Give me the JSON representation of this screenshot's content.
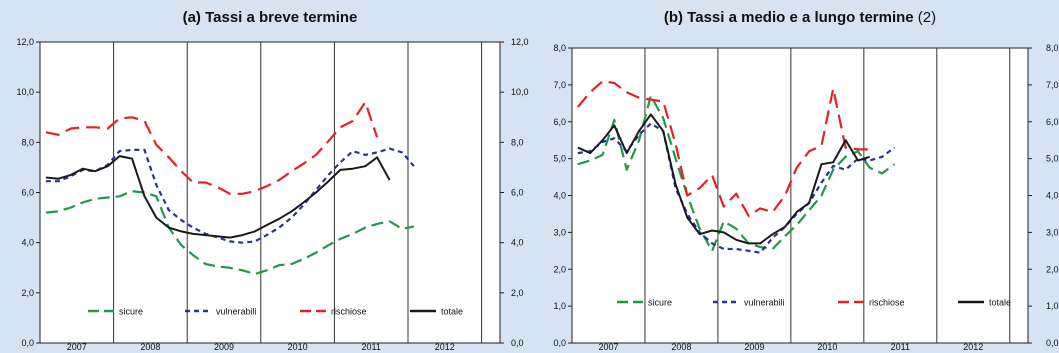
{
  "chart_data": [
    {
      "type": "line",
      "title": "(a) Tassi a breve termine",
      "title_suffix": "",
      "xlabel": "",
      "ylabel": "",
      "x_tick_labels": [
        "2007",
        "2008",
        "2009",
        "2010",
        "2011",
        "2012"
      ],
      "x_range": [
        2006.5,
        2012.75
      ],
      "ylim": [
        0,
        12
      ],
      "y_ticks": [
        0,
        2,
        4,
        6,
        8,
        10,
        12
      ],
      "y_tick_labels": [
        "0,0",
        "2,0",
        "4,0",
        "6,0",
        "8,0",
        "10,0",
        "12,0"
      ],
      "grid": "vertical",
      "legend_position": "bottom",
      "series": [
        {
          "name": "sicure",
          "color": "#1f9a4a",
          "dash": "12,6",
          "points": [
            [
              2006.58,
              5.2
            ],
            [
              2006.75,
              5.25
            ],
            [
              2006.92,
              5.4
            ],
            [
              2007.08,
              5.6
            ],
            [
              2007.25,
              5.75
            ],
            [
              2007.42,
              5.8
            ],
            [
              2007.58,
              5.85
            ],
            [
              2007.75,
              6.05
            ],
            [
              2007.92,
              6.0
            ],
            [
              2008.08,
              5.85
            ],
            [
              2008.25,
              4.6
            ],
            [
              2008.42,
              3.9
            ],
            [
              2008.58,
              3.5
            ],
            [
              2008.75,
              3.15
            ],
            [
              2008.92,
              3.05
            ],
            [
              2009.08,
              3.0
            ],
            [
              2009.25,
              2.9
            ],
            [
              2009.42,
              2.75
            ],
            [
              2009.58,
              2.9
            ],
            [
              2009.75,
              3.1
            ],
            [
              2009.92,
              3.15
            ],
            [
              2010.08,
              3.35
            ],
            [
              2010.25,
              3.6
            ],
            [
              2010.42,
              3.9
            ],
            [
              2010.58,
              4.15
            ],
            [
              2010.75,
              4.35
            ],
            [
              2010.92,
              4.6
            ],
            [
              2011.08,
              4.75
            ],
            [
              2011.25,
              4.85
            ],
            [
              2011.42,
              4.55
            ],
            [
              2011.58,
              4.65
            ]
          ]
        },
        {
          "name": "vulnerabili",
          "color": "#2a3590",
          "dash": "5,4",
          "points": [
            [
              2006.58,
              6.45
            ],
            [
              2006.75,
              6.45
            ],
            [
              2006.92,
              6.65
            ],
            [
              2007.08,
              6.9
            ],
            [
              2007.25,
              6.85
            ],
            [
              2007.42,
              7.1
            ],
            [
              2007.58,
              7.65
            ],
            [
              2007.75,
              7.7
            ],
            [
              2007.92,
              7.7
            ],
            [
              2008.08,
              6.3
            ],
            [
              2008.25,
              5.3
            ],
            [
              2008.42,
              4.9
            ],
            [
              2008.58,
              4.6
            ],
            [
              2008.75,
              4.35
            ],
            [
              2008.92,
              4.2
            ],
            [
              2009.08,
              4.05
            ],
            [
              2009.25,
              4.0
            ],
            [
              2009.42,
              4.05
            ],
            [
              2009.58,
              4.3
            ],
            [
              2009.75,
              4.6
            ],
            [
              2009.92,
              5.0
            ],
            [
              2010.08,
              5.5
            ],
            [
              2010.25,
              6.1
            ],
            [
              2010.42,
              6.7
            ],
            [
              2010.58,
              7.2
            ],
            [
              2010.75,
              7.65
            ],
            [
              2010.92,
              7.5
            ],
            [
              2011.08,
              7.6
            ],
            [
              2011.25,
              7.75
            ],
            [
              2011.42,
              7.6
            ],
            [
              2011.58,
              7.05
            ]
          ]
        },
        {
          "name": "rischiose",
          "color": "#e32228",
          "dash": "14,7",
          "points": [
            [
              2006.58,
              8.4
            ],
            [
              2006.75,
              8.3
            ],
            [
              2006.92,
              8.55
            ],
            [
              2007.08,
              8.6
            ],
            [
              2007.25,
              8.6
            ],
            [
              2007.42,
              8.55
            ],
            [
              2007.58,
              8.95
            ],
            [
              2007.75,
              9.0
            ],
            [
              2007.92,
              8.85
            ],
            [
              2008.08,
              7.9
            ],
            [
              2008.25,
              7.4
            ],
            [
              2008.42,
              6.85
            ],
            [
              2008.58,
              6.4
            ],
            [
              2008.75,
              6.4
            ],
            [
              2008.92,
              6.2
            ],
            [
              2009.08,
              5.95
            ],
            [
              2009.25,
              5.95
            ],
            [
              2009.42,
              6.05
            ],
            [
              2009.58,
              6.25
            ],
            [
              2009.75,
              6.5
            ],
            [
              2009.92,
              6.85
            ],
            [
              2010.08,
              7.15
            ],
            [
              2010.25,
              7.5
            ],
            [
              2010.42,
              8.05
            ],
            [
              2010.58,
              8.6
            ],
            [
              2010.75,
              8.85
            ],
            [
              2010.92,
              9.6
            ],
            [
              2011.08,
              8.2
            ]
          ]
        },
        {
          "name": "totale",
          "color": "#1a1a1a",
          "dash": "",
          "points": [
            [
              2006.58,
              6.6
            ],
            [
              2006.75,
              6.55
            ],
            [
              2006.92,
              6.7
            ],
            [
              2007.08,
              6.95
            ],
            [
              2007.25,
              6.85
            ],
            [
              2007.42,
              7.05
            ],
            [
              2007.58,
              7.45
            ],
            [
              2007.75,
              7.35
            ],
            [
              2007.92,
              5.85
            ],
            [
              2008.08,
              5.0
            ],
            [
              2008.25,
              4.6
            ],
            [
              2008.42,
              4.45
            ],
            [
              2008.58,
              4.35
            ],
            [
              2008.75,
              4.3
            ],
            [
              2008.92,
              4.25
            ],
            [
              2009.08,
              4.2
            ],
            [
              2009.25,
              4.3
            ],
            [
              2009.42,
              4.45
            ],
            [
              2009.58,
              4.7
            ],
            [
              2009.75,
              4.95
            ],
            [
              2009.92,
              5.25
            ],
            [
              2010.08,
              5.6
            ],
            [
              2010.25,
              6.0
            ],
            [
              2010.42,
              6.45
            ],
            [
              2010.58,
              6.9
            ],
            [
              2010.75,
              6.95
            ],
            [
              2010.92,
              7.05
            ],
            [
              2011.08,
              7.4
            ],
            [
              2011.25,
              6.5
            ]
          ]
        }
      ]
    },
    {
      "type": "line",
      "title": "(b) Tassi a medio e a lungo termine",
      "title_suffix": "(2)",
      "xlabel": "",
      "ylabel": "",
      "x_tick_labels": [
        "2007",
        "2008",
        "2009",
        "2010",
        "2011",
        "2012"
      ],
      "x_range": [
        2006.5,
        2012.75
      ],
      "ylim": [
        0,
        8
      ],
      "y_ticks": [
        0,
        1,
        2,
        3,
        4,
        5,
        6,
        7,
        8
      ],
      "y_tick_labels": [
        "0,0",
        "1,0",
        "2,0",
        "3,0",
        "4,0",
        "5,0",
        "6,0",
        "7,0",
        "8,0"
      ],
      "y_tick_labels_right": [
        "0,0",
        "1,0",
        "2,0",
        "3,0",
        "4,0",
        "5,0",
        "6,0",
        "7,0",
        "8,0"
      ],
      "grid": "vertical",
      "legend_position": "bottom",
      "series": [
        {
          "name": "sicure",
          "color": "#1f9a4a",
          "dash": "12,6",
          "points": [
            [
              2006.58,
              4.85
            ],
            [
              2006.75,
              4.95
            ],
            [
              2006.92,
              5.1
            ],
            [
              2007.08,
              6.05
            ],
            [
              2007.25,
              4.7
            ],
            [
              2007.42,
              5.5
            ],
            [
              2007.58,
              6.7
            ],
            [
              2007.75,
              6.1
            ],
            [
              2007.92,
              5.0
            ],
            [
              2008.08,
              4.0
            ],
            [
              2008.25,
              3.1
            ],
            [
              2008.42,
              2.5
            ],
            [
              2008.58,
              3.3
            ],
            [
              2008.75,
              3.1
            ],
            [
              2008.92,
              2.7
            ],
            [
              2009.08,
              2.6
            ],
            [
              2009.25,
              2.55
            ],
            [
              2009.42,
              2.9
            ],
            [
              2009.58,
              3.2
            ],
            [
              2009.75,
              3.6
            ],
            [
              2009.92,
              4.0
            ],
            [
              2010.08,
              4.7
            ],
            [
              2010.25,
              5.05
            ],
            [
              2010.42,
              5.2
            ],
            [
              2010.58,
              4.75
            ],
            [
              2010.75,
              4.6
            ],
            [
              2010.92,
              4.85
            ]
          ]
        },
        {
          "name": "vulnerabili",
          "color": "#2a3590",
          "dash": "5,4",
          "points": [
            [
              2006.58,
              5.15
            ],
            [
              2006.75,
              5.2
            ],
            [
              2006.92,
              5.45
            ],
            [
              2007.08,
              5.55
            ],
            [
              2007.25,
              5.2
            ],
            [
              2007.42,
              5.65
            ],
            [
              2007.58,
              5.95
            ],
            [
              2007.75,
              5.75
            ],
            [
              2007.92,
              4.2
            ],
            [
              2008.08,
              3.5
            ],
            [
              2008.25,
              3.0
            ],
            [
              2008.42,
              2.7
            ],
            [
              2008.58,
              2.55
            ],
            [
              2008.75,
              2.55
            ],
            [
              2008.92,
              2.5
            ],
            [
              2009.08,
              2.45
            ],
            [
              2009.25,
              2.85
            ],
            [
              2009.42,
              3.15
            ],
            [
              2009.58,
              3.5
            ],
            [
              2009.75,
              3.8
            ],
            [
              2009.92,
              4.35
            ],
            [
              2010.08,
              4.8
            ],
            [
              2010.25,
              4.7
            ],
            [
              2010.42,
              5.0
            ],
            [
              2010.58,
              4.95
            ],
            [
              2010.75,
              5.05
            ],
            [
              2010.92,
              5.3
            ]
          ]
        },
        {
          "name": "rischiose",
          "color": "#e32228",
          "dash": "14,7",
          "points": [
            [
              2006.58,
              6.4
            ],
            [
              2006.75,
              6.8
            ],
            [
              2006.92,
              7.1
            ],
            [
              2007.08,
              7.05
            ],
            [
              2007.25,
              6.8
            ],
            [
              2007.42,
              6.65
            ],
            [
              2007.58,
              6.6
            ],
            [
              2007.75,
              6.55
            ],
            [
              2007.92,
              5.4
            ],
            [
              2008.08,
              4.0
            ],
            [
              2008.25,
              4.2
            ],
            [
              2008.42,
              4.55
            ],
            [
              2008.58,
              3.7
            ],
            [
              2008.75,
              4.05
            ],
            [
              2008.92,
              3.45
            ],
            [
              2009.08,
              3.65
            ],
            [
              2009.25,
              3.55
            ],
            [
              2009.42,
              4.0
            ],
            [
              2009.58,
              4.75
            ],
            [
              2009.75,
              5.2
            ],
            [
              2009.92,
              5.35
            ],
            [
              2010.08,
              6.9
            ],
            [
              2010.25,
              5.3
            ],
            [
              2010.42,
              5.25
            ],
            [
              2010.58,
              5.25
            ]
          ]
        },
        {
          "name": "totale",
          "color": "#1a1a1a",
          "dash": "",
          "points": [
            [
              2006.58,
              5.3
            ],
            [
              2006.75,
              5.15
            ],
            [
              2006.92,
              5.5
            ],
            [
              2007.08,
              5.9
            ],
            [
              2007.25,
              5.15
            ],
            [
              2007.42,
              5.75
            ],
            [
              2007.58,
              6.2
            ],
            [
              2007.75,
              5.75
            ],
            [
              2007.92,
              4.3
            ],
            [
              2008.08,
              3.4
            ],
            [
              2008.25,
              2.95
            ],
            [
              2008.42,
              3.05
            ],
            [
              2008.58,
              3.0
            ],
            [
              2008.75,
              2.8
            ],
            [
              2008.92,
              2.7
            ],
            [
              2009.08,
              2.7
            ],
            [
              2009.25,
              2.95
            ],
            [
              2009.42,
              3.15
            ],
            [
              2009.58,
              3.55
            ],
            [
              2009.75,
              3.8
            ],
            [
              2009.92,
              4.85
            ],
            [
              2010.08,
              4.9
            ],
            [
              2010.25,
              5.5
            ],
            [
              2010.42,
              4.95
            ],
            [
              2010.58,
              5.05
            ]
          ]
        }
      ]
    }
  ]
}
